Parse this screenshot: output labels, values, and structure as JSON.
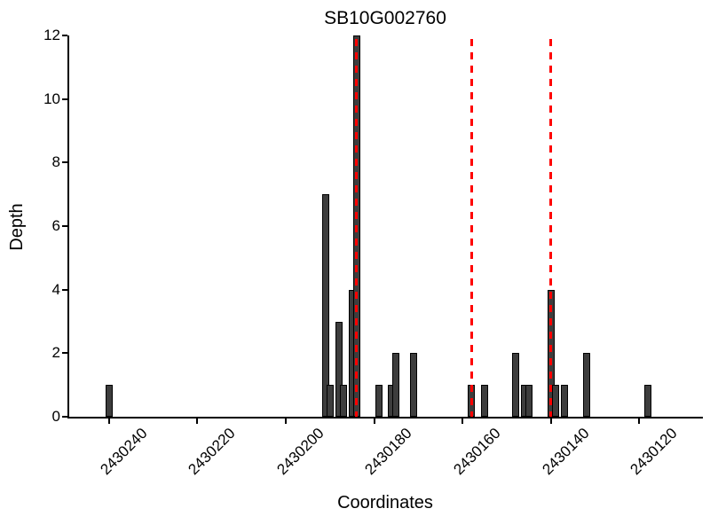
{
  "chart_data": {
    "type": "bar",
    "title": "SB10G002760",
    "xlabel": "Coordinates",
    "ylabel": "Depth",
    "x_axis_inverted": true,
    "xlim": [
      2430249,
      2430106
    ],
    "ylim": [
      0,
      12
    ],
    "xticks": [
      2430240,
      2430220,
      2430200,
      2430180,
      2430160,
      2430140,
      2430120
    ],
    "yticks": [
      0,
      2,
      4,
      6,
      8,
      10,
      12
    ],
    "bar_width": 1,
    "bars": [
      {
        "coordinate": 2430240,
        "depth": 1
      },
      {
        "coordinate": 2430191,
        "depth": 7
      },
      {
        "coordinate": 2430190,
        "depth": 1
      },
      {
        "coordinate": 2430188,
        "depth": 3
      },
      {
        "coordinate": 2430187,
        "depth": 1
      },
      {
        "coordinate": 2430185,
        "depth": 4
      },
      {
        "coordinate": 2430184,
        "depth": 12
      },
      {
        "coordinate": 2430179,
        "depth": 1
      },
      {
        "coordinate": 2430176,
        "depth": 1
      },
      {
        "coordinate": 2430175,
        "depth": 2
      },
      {
        "coordinate": 2430171,
        "depth": 2
      },
      {
        "coordinate": 2430158,
        "depth": 1
      },
      {
        "coordinate": 2430155,
        "depth": 1
      },
      {
        "coordinate": 2430148,
        "depth": 2
      },
      {
        "coordinate": 2430146,
        "depth": 1
      },
      {
        "coordinate": 2430145,
        "depth": 1
      },
      {
        "coordinate": 2430140,
        "depth": 4
      },
      {
        "coordinate": 2430139,
        "depth": 1
      },
      {
        "coordinate": 2430137,
        "depth": 1
      },
      {
        "coordinate": 2430132,
        "depth": 2
      },
      {
        "coordinate": 2430118,
        "depth": 1
      }
    ],
    "marker_lines": {
      "style": "dashed",
      "color": "#ff0000",
      "positions": [
        2430184,
        2430158,
        2430140
      ]
    },
    "colors": {
      "bar_fill": "#3d3d3d",
      "bar_edge": "#000000",
      "axis": "#000000",
      "background": "#ffffff"
    }
  }
}
